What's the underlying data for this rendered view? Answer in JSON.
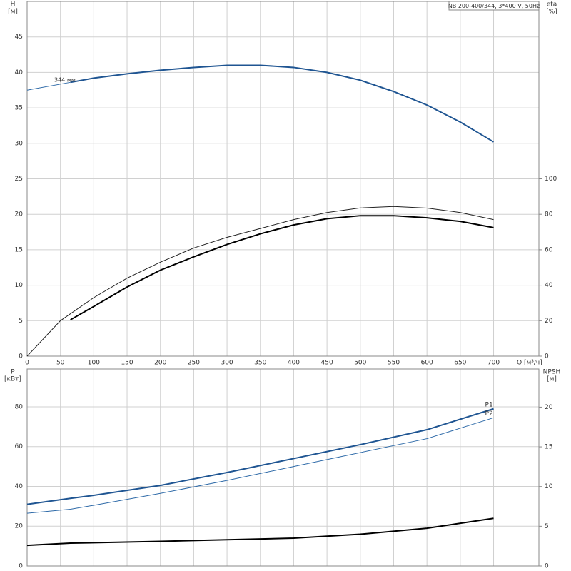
{
  "chart_data": [
    {
      "type": "line",
      "title": "NB 200-400/344, 3*400 V, 50Hz",
      "annotation": "344 мм",
      "xlabel": "Q [м³/ч]",
      "ylabel": "H",
      "ylabel_unit": "[м]",
      "y2label": "eta",
      "y2label_unit": "[%]",
      "xlim": [
        0,
        768
      ],
      "xticks": [
        0,
        50,
        100,
        150,
        200,
        250,
        300,
        350,
        400,
        450,
        500,
        550,
        600,
        650,
        700
      ],
      "ylim": [
        0,
        50
      ],
      "yticks": [
        0,
        5,
        10,
        15,
        20,
        25,
        30,
        35,
        40,
        45
      ],
      "y2lim": [
        0,
        200
      ],
      "y2ticks": [
        0,
        20,
        40,
        60,
        80,
        100
      ],
      "grid": true,
      "series": [
        {
          "color": "#1f5592",
          "width": 2,
          "x": [
            65,
            100,
            150,
            200,
            250,
            300,
            350,
            400,
            450,
            500,
            550,
            600,
            650,
            700
          ],
          "values": [
            38.6,
            39.2,
            39.8,
            40.3,
            40.7,
            41.0,
            41.0,
            40.7,
            40.0,
            38.9,
            37.3,
            35.4,
            33.0,
            30.2
          ]
        },
        {
          "color": "#2e6aa8",
          "width": 1,
          "x": [
            0,
            65
          ],
          "values": [
            37.5,
            38.6
          ]
        },
        {
          "color": "#222222",
          "width": 1,
          "axis": "y2",
          "x": [
            0,
            50,
            100,
            150,
            200,
            250,
            300,
            350,
            400,
            450,
            500,
            550,
            600,
            650,
            700
          ],
          "values": [
            0,
            20,
            33,
            44,
            53,
            61,
            67,
            72,
            77,
            81,
            83.6,
            84.4,
            83.5,
            81,
            77
          ]
        },
        {
          "color": "#000000",
          "width": 2,
          "axis": "y2",
          "x": [
            65,
            100,
            150,
            200,
            250,
            300,
            350,
            400,
            450,
            500,
            550,
            600,
            650,
            700
          ],
          "values": [
            20.5,
            28,
            39,
            48.5,
            56,
            63,
            69,
            74,
            77.5,
            79.2,
            79.2,
            78,
            76,
            72.5
          ]
        }
      ]
    },
    {
      "type": "line",
      "ylabel": "P",
      "ylabel_unit": "[кВт]",
      "y2label": "NPSH",
      "y2label_unit": "[м]",
      "xlim": [
        0,
        768
      ],
      "xticks": [
        0,
        50,
        100,
        150,
        200,
        250,
        300,
        350,
        400,
        450,
        500,
        550,
        600,
        650,
        700
      ],
      "ylim": [
        0,
        99
      ],
      "yticks": [
        0,
        20,
        40,
        60,
        80
      ],
      "y2lim": [
        0,
        24.8
      ],
      "y2ticks": [
        0,
        5,
        10,
        15,
        20
      ],
      "grid": true,
      "series": [
        {
          "name": "P1",
          "color": "#1f5592",
          "width": 2,
          "x": [
            0,
            65,
            100,
            200,
            300,
            400,
            500,
            600,
            700
          ],
          "values": [
            31,
            34,
            35.5,
            40.5,
            47,
            54,
            61,
            68.5,
            79
          ]
        },
        {
          "name": "P2",
          "color": "#2e6aa8",
          "width": 1,
          "x": [
            0,
            65,
            100,
            200,
            300,
            400,
            500,
            600,
            700
          ],
          "values": [
            26.5,
            28.5,
            30.5,
            36.5,
            43,
            50,
            57,
            64,
            74.5
          ]
        },
        {
          "color": "#000000",
          "width": 2,
          "axis": "y2",
          "x": [
            0,
            65,
            200,
            400,
            500,
            600,
            700
          ],
          "values": [
            2.6,
            2.87,
            3.1,
            3.5,
            4.0,
            4.75,
            6.0
          ]
        }
      ]
    }
  ]
}
